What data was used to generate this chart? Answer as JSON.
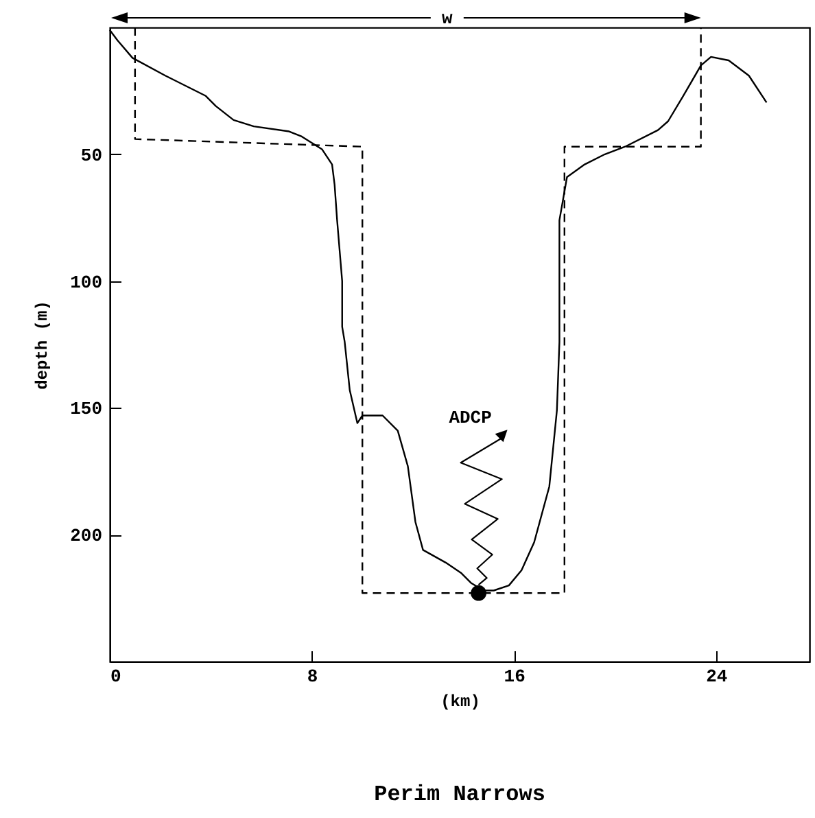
{
  "chart_data": {
    "type": "line",
    "title": "Perim Narrows",
    "xlabel": "(km)",
    "ylabel": "depth (m)",
    "xlim": [
      0,
      27.7
    ],
    "xticks": [
      0,
      8,
      16,
      24
    ],
    "ylim": [
      250,
      0
    ],
    "yticks": [
      50,
      100,
      150,
      200
    ],
    "grid": false,
    "marker": "none",
    "annotations": [
      "ADCP",
      "w"
    ],
    "series": [
      {
        "color": "#000000",
        "line_style": "solid",
        "x": [
          0,
          0.3,
          0.9,
          2.2,
          3.8,
          4.2,
          4.9,
          5.7,
          7.1,
          7.6,
          8.4,
          8.8,
          8.9,
          9.0,
          9.2,
          9.2,
          9.3,
          9.5,
          9.8,
          10.0,
          10.8,
          11.4,
          11.8,
          12.1,
          12.4,
          13.3,
          13.9,
          14.3,
          14.8,
          15.2,
          15.8,
          16.3,
          16.8,
          17.4,
          17.7,
          17.8,
          17.8,
          17.8,
          18.1,
          18.8,
          19.6,
          20.4,
          21.7,
          22.1,
          22.7,
          23.4,
          23.8,
          24.5,
          25.3,
          26.0
        ],
        "values": [
          1,
          5,
          12,
          19,
          27,
          31,
          36.5,
          39,
          41,
          43,
          48,
          54,
          62,
          76,
          100,
          118,
          124,
          143,
          156,
          153,
          153,
          159,
          173,
          195,
          206,
          211,
          215,
          219,
          222,
          222,
          220,
          214,
          203,
          181,
          151,
          124,
          97,
          76,
          59,
          54,
          50,
          47,
          40.5,
          37,
          27,
          15,
          11.6,
          13,
          19,
          29.6
        ]
      },
      {
        "color": "#000000",
        "line_style": "dashed",
        "x": [
          1,
          1,
          10,
          10,
          18,
          18,
          23.4,
          23.4
        ],
        "values": [
          0,
          44,
          47,
          223,
          223,
          47,
          47,
          0
        ]
      },
      {
        "type": "scatter",
        "color": "#000000",
        "marker": "circle",
        "x": [
          14.6
        ],
        "values": [
          223
        ]
      }
    ]
  }
}
